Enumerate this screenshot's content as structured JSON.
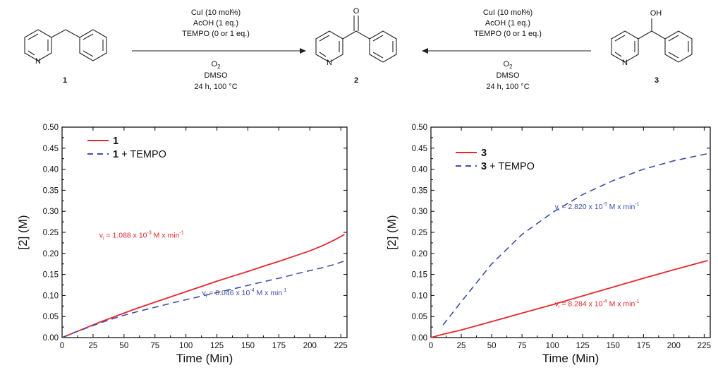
{
  "scheme": {
    "left_conditions": [
      "CuI (10 mol%)",
      "AcOH (1 eq.)",
      "TEMPO (0 or 1 eq.)"
    ],
    "left_below": [
      "O2",
      "DMSO",
      "24 h, 100 °C"
    ],
    "right_conditions": [
      "CuI (10 mol%)",
      "AcOH (1 eq.)",
      "TEMPO (0 or 1 eq.)"
    ],
    "right_below": [
      "O2",
      "DMSO",
      "24 h, 100 °C"
    ],
    "compound_labels": [
      "1",
      "2",
      "3"
    ],
    "atom_N": "N",
    "atom_O": "O",
    "atom_OH": "OH"
  },
  "colors": {
    "red": "#e8262d",
    "blue": "#3d4fa6",
    "axis": "#000000"
  },
  "chart_data": [
    {
      "type": "line",
      "xlabel": "Time (Min)",
      "ylabel": "[2] (M)",
      "xlim": [
        0,
        230
      ],
      "ylim": [
        0,
        0.5
      ],
      "xticks": [
        0,
        25,
        50,
        75,
        100,
        125,
        150,
        175,
        200,
        225
      ],
      "yticks": [
        "0.00",
        "0.05",
        "0.10",
        "0.15",
        "0.20",
        "0.25",
        "0.30",
        "0.35",
        "0.40",
        "0.45",
        "0.50"
      ],
      "legend_placement": "top-left",
      "series": [
        {
          "name": "1",
          "color": "#e8262d",
          "style": "solid",
          "x": [
            0,
            10,
            20,
            30,
            40,
            50,
            60,
            75,
            90,
            100,
            115,
            125,
            140,
            150,
            160,
            175,
            190,
            200,
            210,
            220,
            228
          ],
          "y": [
            0.0,
            0.012,
            0.024,
            0.036,
            0.047,
            0.058,
            0.069,
            0.084,
            0.099,
            0.109,
            0.124,
            0.134,
            0.148,
            0.157,
            0.167,
            0.181,
            0.196,
            0.206,
            0.218,
            0.232,
            0.245
          ]
        },
        {
          "name": "1 + TEMPO",
          "color": "#3d4fa6",
          "style": "dashed",
          "x": [
            0,
            10,
            20,
            30,
            40,
            50,
            60,
            75,
            90,
            100,
            115,
            125,
            140,
            150,
            160,
            175,
            190,
            200,
            210,
            220,
            228
          ],
          "y": [
            0.0,
            0.012,
            0.023,
            0.034,
            0.044,
            0.053,
            0.061,
            0.072,
            0.083,
            0.09,
            0.1,
            0.107,
            0.117,
            0.124,
            0.131,
            0.141,
            0.152,
            0.159,
            0.166,
            0.174,
            0.182
          ]
        }
      ],
      "annotations": [
        {
          "pre": "v",
          "sub": "i",
          "mid": " = 1.088 x 10",
          "sup": "-3",
          "post": " M x min",
          "sup2": "-1",
          "color": "#e8262d",
          "at": [
            30,
            0.237
          ]
        },
        {
          "pre": "v",
          "sub": "i",
          "mid": " = 8.046 x 10",
          "sup": "-4",
          "post": " M x min",
          "sup2": "-1",
          "color": "#3d4fa6",
          "at": [
            113,
            0.101
          ]
        }
      ]
    },
    {
      "type": "line",
      "xlabel": "Time (Min)",
      "ylabel": "[2] (M)",
      "xlim": [
        0,
        230
      ],
      "ylim": [
        0,
        0.5
      ],
      "xticks": [
        0,
        25,
        50,
        75,
        100,
        125,
        150,
        175,
        200,
        225
      ],
      "yticks": [
        "0.00",
        "0.05",
        "0.10",
        "0.15",
        "0.20",
        "0.25",
        "0.30",
        "0.35",
        "0.40",
        "0.45",
        "0.50"
      ],
      "legend_placement": "top-left",
      "series": [
        {
          "name": "3",
          "color": "#e8262d",
          "style": "solid",
          "x": [
            0,
            10,
            25,
            50,
            75,
            100,
            125,
            150,
            175,
            200,
            228
          ],
          "y": [
            0.0,
            0.008,
            0.018,
            0.038,
            0.058,
            0.078,
            0.099,
            0.12,
            0.141,
            0.161,
            0.183
          ]
        },
        {
          "name": "3 + TEMPO",
          "color": "#3d4fa6",
          "style": "dashed",
          "x": [
            10,
            25,
            50,
            75,
            100,
            125,
            150,
            175,
            200,
            228
          ],
          "y": [
            0.03,
            0.085,
            0.175,
            0.245,
            0.297,
            0.34,
            0.373,
            0.4,
            0.42,
            0.437
          ]
        }
      ],
      "annotations": [
        {
          "pre": "v",
          "sub": "i",
          "mid": " = 2.820 x 10",
          "sup": "-3",
          "post": " M x min",
          "sup2": "-1",
          "color": "#3d4fa6",
          "at": [
            102,
            0.305
          ]
        },
        {
          "pre": "v",
          "sub": "i",
          "mid": " = 8.284 x 10",
          "sup": "-4",
          "post": " M x min",
          "sup2": "-1",
          "color": "#e8262d",
          "at": [
            102,
            0.075
          ]
        }
      ]
    }
  ]
}
